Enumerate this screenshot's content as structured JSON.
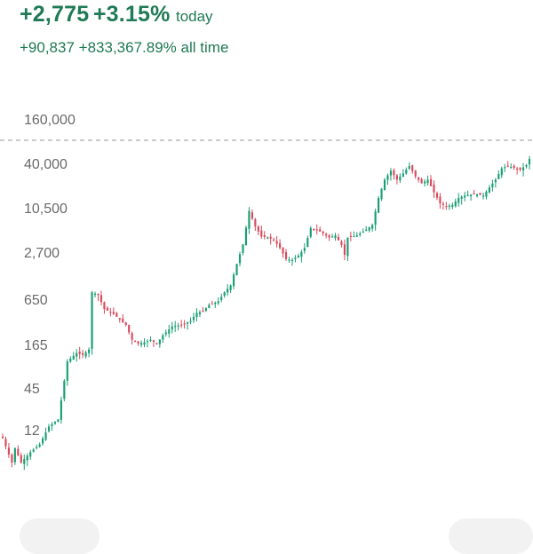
{
  "header": {
    "today_change": "+2,775",
    "today_pct": "+3.15%",
    "today_label": "today",
    "alltime_change": "+90,837",
    "alltime_pct": "+833,367.89%",
    "alltime_label": "all time"
  },
  "colors": {
    "up": "#1a9e74",
    "down": "#d94a5c",
    "text_accent": "#1f7a56",
    "axis_text": "#6a6a6a"
  },
  "chart_data": {
    "type": "candlestick",
    "scale": "log",
    "ytick_labels": [
      "160,000",
      "40,000",
      "10,500",
      "2,700",
      "650",
      "165",
      "45",
      "12"
    ],
    "ytick_values": [
      160000,
      40000,
      10500,
      2700,
      650,
      165,
      45,
      12
    ],
    "reference_line": 160000,
    "anchors": [
      [
        0,
        11
      ],
      [
        3,
        5
      ],
      [
        4,
        8
      ],
      [
        6,
        5
      ],
      [
        9,
        7
      ],
      [
        12,
        9
      ],
      [
        15,
        16
      ],
      [
        18,
        20
      ],
      [
        21,
        130
      ],
      [
        24,
        170
      ],
      [
        26,
        160
      ],
      [
        28,
        190
      ],
      [
        29,
        1200
      ],
      [
        31,
        1100
      ],
      [
        33,
        700
      ],
      [
        36,
        600
      ],
      [
        38,
        500
      ],
      [
        40,
        420
      ],
      [
        42,
        260
      ],
      [
        44,
        230
      ],
      [
        46,
        240
      ],
      [
        48,
        260
      ],
      [
        50,
        230
      ],
      [
        52,
        300
      ],
      [
        55,
        400
      ],
      [
        58,
        420
      ],
      [
        61,
        480
      ],
      [
        63,
        620
      ],
      [
        65,
        650
      ],
      [
        67,
        800
      ],
      [
        70,
        900
      ],
      [
        72,
        1200
      ],
      [
        74,
        1500
      ],
      [
        76,
        3000
      ],
      [
        78,
        5600
      ],
      [
        80,
        16500
      ],
      [
        82,
        10000
      ],
      [
        84,
        7200
      ],
      [
        86,
        7000
      ],
      [
        88,
        6500
      ],
      [
        90,
        5000
      ],
      [
        92,
        3500
      ],
      [
        94,
        3400
      ],
      [
        96,
        3900
      ],
      [
        98,
        5000
      ],
      [
        100,
        9500
      ],
      [
        102,
        9000
      ],
      [
        104,
        8000
      ],
      [
        106,
        7000
      ],
      [
        108,
        7500
      ],
      [
        110,
        5500
      ],
      [
        111,
        4000
      ],
      [
        112,
        7000
      ],
      [
        115,
        7500
      ],
      [
        118,
        9000
      ],
      [
        120,
        10500
      ],
      [
        122,
        25000
      ],
      [
        124,
        45000
      ],
      [
        126,
        60000
      ],
      [
        128,
        45000
      ],
      [
        130,
        55000
      ],
      [
        132,
        70000
      ],
      [
        134,
        50000
      ],
      [
        136,
        40000
      ],
      [
        138,
        45000
      ],
      [
        140,
        30000
      ],
      [
        142,
        21000
      ],
      [
        144,
        19000
      ],
      [
        146,
        20000
      ],
      [
        148,
        25000
      ],
      [
        150,
        27000
      ],
      [
        152,
        28000
      ],
      [
        154,
        28000
      ],
      [
        156,
        27000
      ],
      [
        158,
        35000
      ],
      [
        160,
        45000
      ],
      [
        162,
        65000
      ],
      [
        164,
        70000
      ],
      [
        166,
        66000
      ],
      [
        168,
        62000
      ],
      [
        170,
        72000
      ],
      [
        171,
        88000
      ]
    ]
  }
}
